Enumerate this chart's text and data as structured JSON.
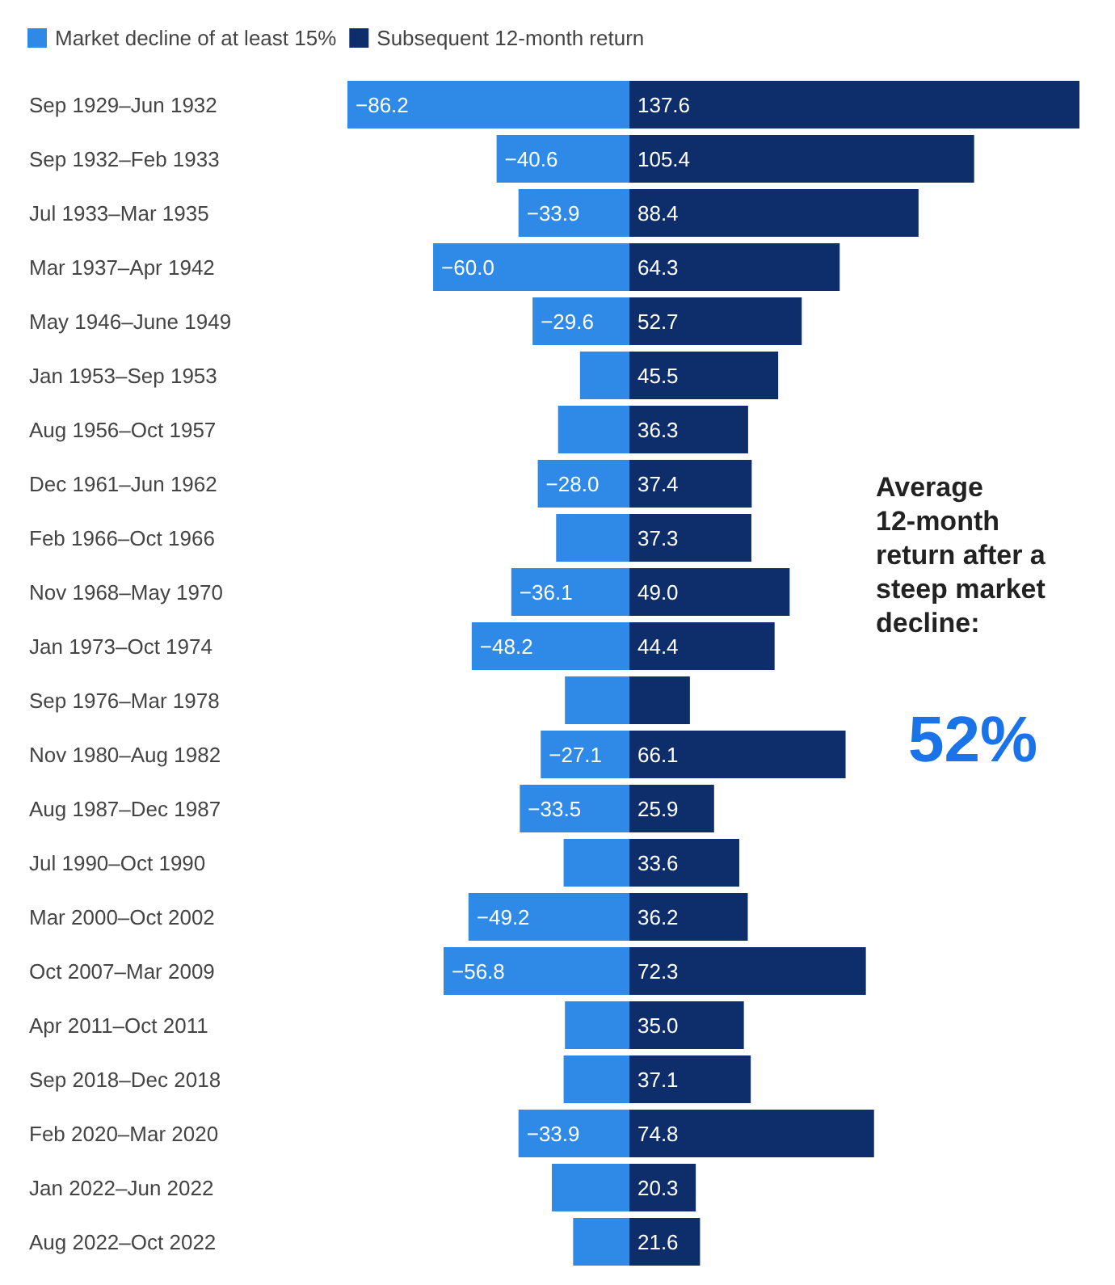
{
  "chart_data": {
    "type": "bar",
    "orientation": "horizontal",
    "legend": "top left",
    "stacked": true,
    "categories": [
      "Sep 1929–Jun 1932",
      "Sep 1932–Feb 1933",
      "Jul 1933–Mar 1935",
      "Mar 1937–Apr 1942",
      "May 1946–June 1949",
      "Jan 1953–Sep 1953",
      "Aug 1956–Oct 1957",
      "Dec 1961–Jun 1962",
      "Feb 1966–Oct 1966",
      "Nov 1968–May 1970",
      "Jan 1973–Oct 1974",
      "Sep 1976–Mar 1978",
      "Nov 1980–Aug 1982",
      "Aug 1987–Dec 1987",
      "Jul 1990–Oct 1990",
      "Mar 2000–Oct 2002",
      "Oct 2007–Mar 2009",
      "Apr 2011–Oct 2011",
      "Sep 2018–Dec 2018",
      "Feb 2020–Mar 2020",
      "Jan 2022–Jun 2022",
      "Aug 2022–Oct 2022"
    ],
    "series": [
      {
        "name": "Market decline of at least 15%",
        "color": "#2e8ae6",
        "values": [
          -86.2,
          -40.6,
          -33.9,
          -60.0,
          -29.6,
          -15.1,
          -21.8,
          -28.0,
          -22.4,
          -36.1,
          -48.2,
          -19.7,
          -27.1,
          -33.5,
          -20.1,
          -49.2,
          -56.8,
          -19.7,
          -20.1,
          -33.9,
          -23.7,
          -17.2
        ],
        "value_labels": [
          "−86.2",
          "−40.6",
          "−33.9",
          "−60.0",
          "−29.6",
          null,
          null,
          "−28.0",
          null,
          "−36.1",
          "−48.2",
          null,
          "−27.1",
          "−33.5",
          null,
          "−49.2",
          "−56.8",
          null,
          null,
          "−33.9",
          null,
          null
        ]
      },
      {
        "name": "Subsequent 12-month return",
        "color": "#0d2d6b",
        "values": [
          137.6,
          105.4,
          88.4,
          64.3,
          52.7,
          45.5,
          36.3,
          37.4,
          37.3,
          49.0,
          44.4,
          18.5,
          66.1,
          25.9,
          33.6,
          36.2,
          72.3,
          35.0,
          37.1,
          74.8,
          20.3,
          21.6
        ],
        "value_labels": [
          "137.6",
          "105.4",
          "88.4",
          "64.3",
          "52.7",
          "45.5",
          "36.3",
          "37.4",
          "37.3",
          "49.0",
          "44.4",
          null,
          "66.1",
          "25.9",
          "33.6",
          "36.2",
          "72.3",
          "35.0",
          "37.1",
          "74.8",
          "20.3",
          "21.6"
        ]
      }
    ],
    "annotations": [
      "Average 12-month return after a steep market decline:",
      "52%"
    ]
  }
}
